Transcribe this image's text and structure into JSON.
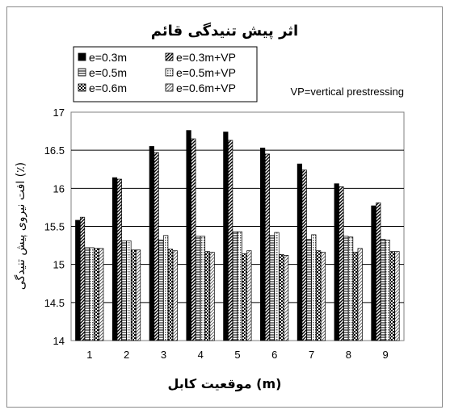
{
  "chart_data": {
    "type": "bar",
    "title": "اثر پیش تنیدگی قائم",
    "xlabel": "موقعیت کابل (m)",
    "ylabel": "افت نیروی پیش تنیدگی (٪)",
    "annotation": "VP=vertical prestressing",
    "categories": [
      "1",
      "2",
      "3",
      "4",
      "5",
      "6",
      "7",
      "8",
      "9"
    ],
    "yticks": [
      "14",
      "14.5",
      "15",
      "15.5",
      "16",
      "16.5",
      "17"
    ],
    "ylim": [
      14,
      17
    ],
    "grid": true,
    "legend_position": "top-left",
    "series": [
      {
        "name": "e=0.3m",
        "pattern": "solid",
        "values": [
          15.58,
          16.14,
          16.55,
          16.76,
          16.74,
          16.53,
          16.32,
          16.06,
          15.77
        ]
      },
      {
        "name": "e=0.3m+VP",
        "pattern": "diag-dense",
        "values": [
          15.62,
          16.12,
          16.47,
          16.65,
          16.63,
          16.45,
          16.24,
          16.02,
          15.81
        ]
      },
      {
        "name": "e=0.5m",
        "pattern": "horizontal",
        "values": [
          15.22,
          15.31,
          15.32,
          15.37,
          15.43,
          15.38,
          15.33,
          15.37,
          15.33
        ]
      },
      {
        "name": "e=0.5m+VP",
        "pattern": "dots",
        "values": [
          15.22,
          15.31,
          15.38,
          15.37,
          15.43,
          15.42,
          15.39,
          15.36,
          15.32
        ]
      },
      {
        "name": "e=0.6m",
        "pattern": "checker",
        "values": [
          15.21,
          15.19,
          15.2,
          15.17,
          15.14,
          15.13,
          15.18,
          15.16,
          15.17
        ]
      },
      {
        "name": "e=0.6m+VP",
        "pattern": "diag-sparse",
        "values": [
          15.21,
          15.19,
          15.18,
          15.16,
          15.18,
          15.12,
          15.16,
          15.21,
          15.17
        ]
      }
    ]
  }
}
